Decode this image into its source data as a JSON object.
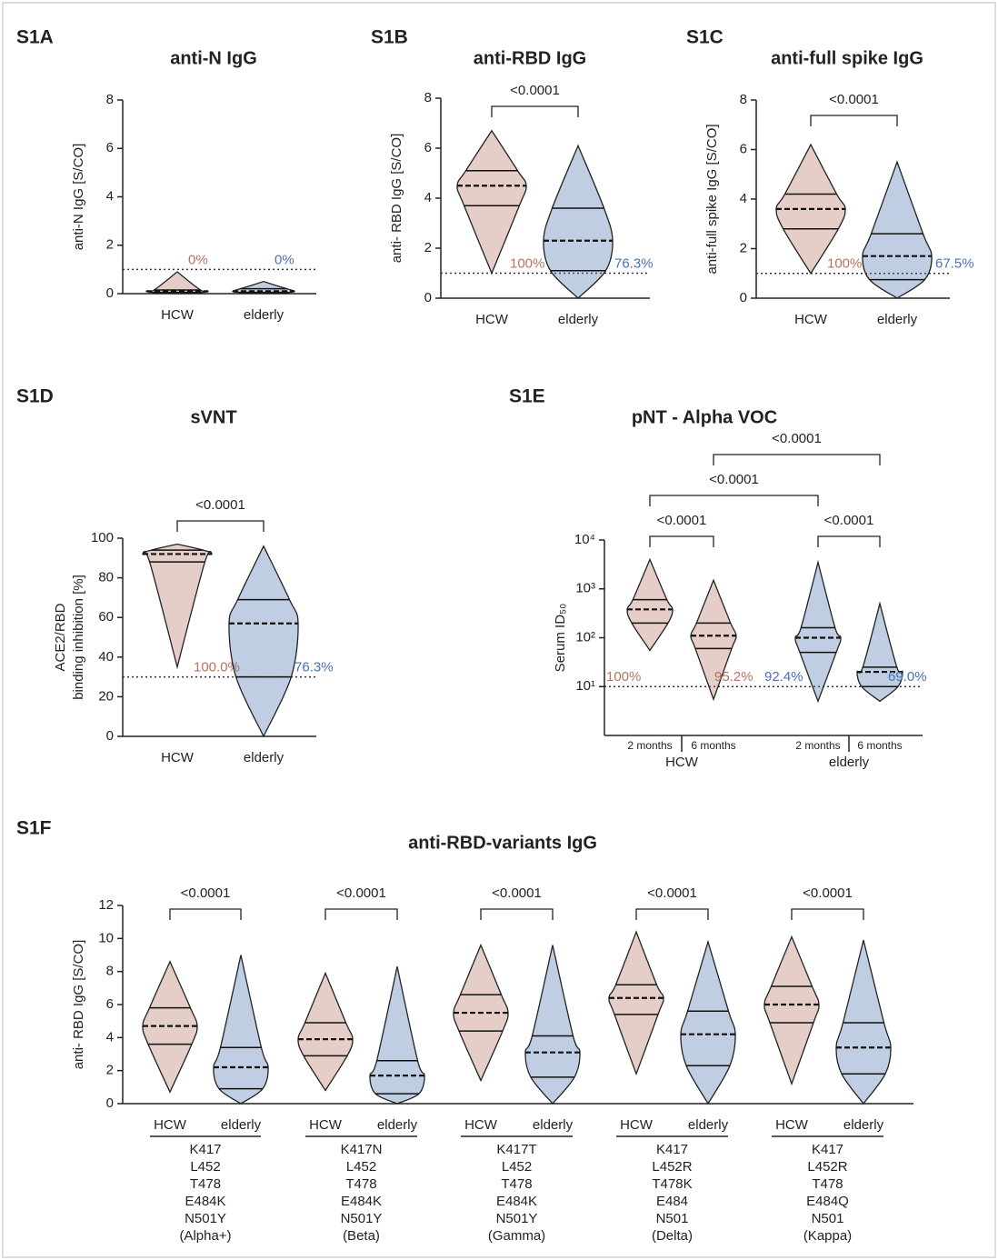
{
  "chart_data": [
    {
      "type": "violin",
      "label": "S1A",
      "title": "anti-N IgG",
      "y_label": [
        "anti-N IgG [S/CO]"
      ],
      "ylim": [
        0,
        8
      ],
      "yticks": [
        0,
        2,
        4,
        6,
        8
      ],
      "threshold": 1,
      "groups": [
        {
          "name": "HCW",
          "color": "#b5725f",
          "min": 0,
          "q1": 0.05,
          "median": 0.1,
          "q3": 0.15,
          "max": 0.9,
          "percent_label": "0%"
        },
        {
          "name": "elderly",
          "color": "#4a72b0",
          "min": 0,
          "q1": 0.05,
          "median": 0.1,
          "q3": 0.2,
          "max": 0.5,
          "percent_label": "0%"
        }
      ],
      "comparisons": []
    },
    {
      "type": "violin",
      "label": "S1B",
      "title": "anti-RBD IgG",
      "y_label": [
        "anti- RBD IgG [S/CO]"
      ],
      "ylim": [
        0,
        8
      ],
      "yticks": [
        0,
        2,
        4,
        6,
        8
      ],
      "threshold": 1,
      "groups": [
        {
          "name": "HCW",
          "color": "#b5725f",
          "min": 1.0,
          "q1": 3.7,
          "median": 4.5,
          "q3": 5.1,
          "max": 6.7,
          "percent_label": "100%"
        },
        {
          "name": "elderly",
          "color": "#4a72b0",
          "min": 0,
          "q1": 1.1,
          "median": 2.3,
          "q3": 3.6,
          "max": 6.1,
          "percent_label": "76.3%"
        }
      ],
      "comparisons": [
        {
          "from": 0,
          "to": 1,
          "label": "<0.0001"
        }
      ]
    },
    {
      "type": "violin",
      "label": "S1C",
      "title": "anti-full spike IgG",
      "y_label": [
        "anti-full spike IgG [S/CO]"
      ],
      "ylim": [
        0,
        8
      ],
      "yticks": [
        0,
        2,
        4,
        6,
        8
      ],
      "threshold": 1,
      "groups": [
        {
          "name": "HCW",
          "color": "#b5725f",
          "min": 1.0,
          "q1": 2.8,
          "median": 3.6,
          "q3": 4.2,
          "max": 6.2,
          "percent_label": "100%"
        },
        {
          "name": "elderly",
          "color": "#4a72b0",
          "min": 0,
          "q1": 0.75,
          "median": 1.7,
          "q3": 2.6,
          "max": 5.5,
          "percent_label": "67.5%"
        }
      ],
      "comparisons": [
        {
          "from": 0,
          "to": 1,
          "label": "<0.0001"
        }
      ]
    },
    {
      "type": "violin",
      "label": "S1D",
      "title": "sVNT",
      "y_label": [
        "ACE2/RBD",
        "binding inhibition [%]"
      ],
      "ylim": [
        0,
        100
      ],
      "yticks": [
        0,
        20,
        40,
        60,
        80,
        100
      ],
      "threshold": 30,
      "groups": [
        {
          "name": "HCW",
          "color": "#b5725f",
          "min": 35,
          "q1": 88,
          "median": 92,
          "q3": 94,
          "max": 97,
          "percent_label": "100.0%"
        },
        {
          "name": "elderly",
          "color": "#4a72b0",
          "min": 0,
          "q1": 30,
          "median": 57,
          "q3": 69,
          "max": 96,
          "percent_label": "76.3%"
        }
      ],
      "comparisons": [
        {
          "from": 0,
          "to": 1,
          "label": "<0.0001"
        }
      ]
    },
    {
      "type": "violin",
      "label": "S1E",
      "title": "pNT - Alpha VOC",
      "y_label": [
        "Serum ID₅₀"
      ],
      "log_scale": true,
      "ylim": [
        1,
        10000
      ],
      "yticks": [
        {
          "value": 10,
          "label": "10¹"
        },
        {
          "value": 100,
          "label": "10²"
        },
        {
          "value": 1000,
          "label": "10³"
        },
        {
          "value": 10000,
          "label": "10⁴"
        }
      ],
      "threshold": 10,
      "groups": [
        {
          "name": "2 months",
          "color": "#b5725f",
          "min": 55,
          "q1": 200,
          "median": 380,
          "q3": 600,
          "max": 4000,
          "percent_label": "100%"
        },
        {
          "name": "6 months",
          "color": "#b5725f",
          "min": 5.5,
          "q1": 60,
          "median": 110,
          "q3": 200,
          "max": 1500,
          "percent_label": "95.2%"
        },
        {
          "name": "2 months",
          "color": "#4a72b0",
          "min": 5,
          "q1": 50,
          "median": 100,
          "q3": 160,
          "max": 3500,
          "percent_label": "92.4%"
        },
        {
          "name": "6 months",
          "color": "#4a72b0",
          "min": 5,
          "q1": 10,
          "median": 20,
          "q3": 25,
          "max": 500,
          "percent_label": "69.0%"
        }
      ],
      "group_labels": [
        "HCW",
        "elderly"
      ],
      "comparisons": [
        {
          "from": 0,
          "to": 1,
          "label": "<0.0001"
        },
        {
          "from": 2,
          "to": 3,
          "label": "<0.0001"
        },
        {
          "from": 0,
          "to": 2,
          "label": "<0.0001"
        },
        {
          "from": 1,
          "to": 3,
          "label": "<0.0001"
        }
      ]
    },
    {
      "type": "violin",
      "label": "S1F",
      "title": "anti-RBD-variants IgG",
      "y_label": [
        "anti- RBD IgG [S/CO]"
      ],
      "ylim": [
        0,
        12
      ],
      "yticks": [
        0,
        2,
        4,
        6,
        8,
        10,
        12
      ],
      "groups": [
        {
          "name": "HCW",
          "color": "#b5725f",
          "min": 0.7,
          "q1": 3.6,
          "median": 4.7,
          "q3": 5.8,
          "max": 8.6
        },
        {
          "name": "elderly",
          "color": "#4a72b0",
          "min": 0,
          "q1": 0.9,
          "median": 2.2,
          "q3": 3.4,
          "max": 9.0
        },
        {
          "name": "HCW",
          "color": "#b5725f",
          "min": 0.8,
          "q1": 2.9,
          "median": 3.9,
          "q3": 4.9,
          "max": 7.9
        },
        {
          "name": "elderly",
          "color": "#4a72b0",
          "min": 0,
          "q1": 0.6,
          "median": 1.7,
          "q3": 2.6,
          "max": 8.3
        },
        {
          "name": "HCW",
          "color": "#b5725f",
          "min": 1.4,
          "q1": 4.4,
          "median": 5.5,
          "q3": 6.6,
          "max": 9.6
        },
        {
          "name": "elderly",
          "color": "#4a72b0",
          "min": 0,
          "q1": 1.6,
          "median": 3.1,
          "q3": 4.1,
          "max": 9.6
        },
        {
          "name": "HCW",
          "color": "#b5725f",
          "min": 1.8,
          "q1": 5.4,
          "median": 6.4,
          "q3": 7.2,
          "max": 10.4
        },
        {
          "name": "elderly",
          "color": "#4a72b0",
          "min": 0,
          "q1": 2.3,
          "median": 4.2,
          "q3": 5.6,
          "max": 9.8
        },
        {
          "name": "HCW",
          "color": "#b5725f",
          "min": 1.2,
          "q1": 4.9,
          "median": 6.0,
          "q3": 7.1,
          "max": 10.1
        },
        {
          "name": "elderly",
          "color": "#4a72b0",
          "min": 0,
          "q1": 1.8,
          "median": 3.4,
          "q3": 4.9,
          "max": 9.9
        }
      ],
      "variant_labels": [
        [
          "K417",
          "L452",
          "T478",
          "E484K",
          "N501Y",
          "(Alpha+)"
        ],
        [
          "K417N",
          "L452",
          "T478",
          "E484K",
          "N501Y",
          "(Beta)"
        ],
        [
          "K417T",
          "L452",
          "T478",
          "E484K",
          "N501Y",
          "(Gamma)"
        ],
        [
          "K417",
          "L452R",
          "T478K",
          "E484",
          "N501",
          "(Delta)"
        ],
        [
          "K417",
          "L452R",
          "T478",
          "E484Q",
          "N501",
          "(Kappa)"
        ]
      ],
      "comparisons": [
        {
          "from": 0,
          "to": 1,
          "label": "<0.0001"
        },
        {
          "from": 2,
          "to": 3,
          "label": "<0.0001"
        },
        {
          "from": 4,
          "to": 5,
          "label": "<0.0001"
        },
        {
          "from": 6,
          "to": 7,
          "label": "<0.0001"
        },
        {
          "from": 8,
          "to": 9,
          "label": "<0.0001"
        }
      ]
    }
  ]
}
